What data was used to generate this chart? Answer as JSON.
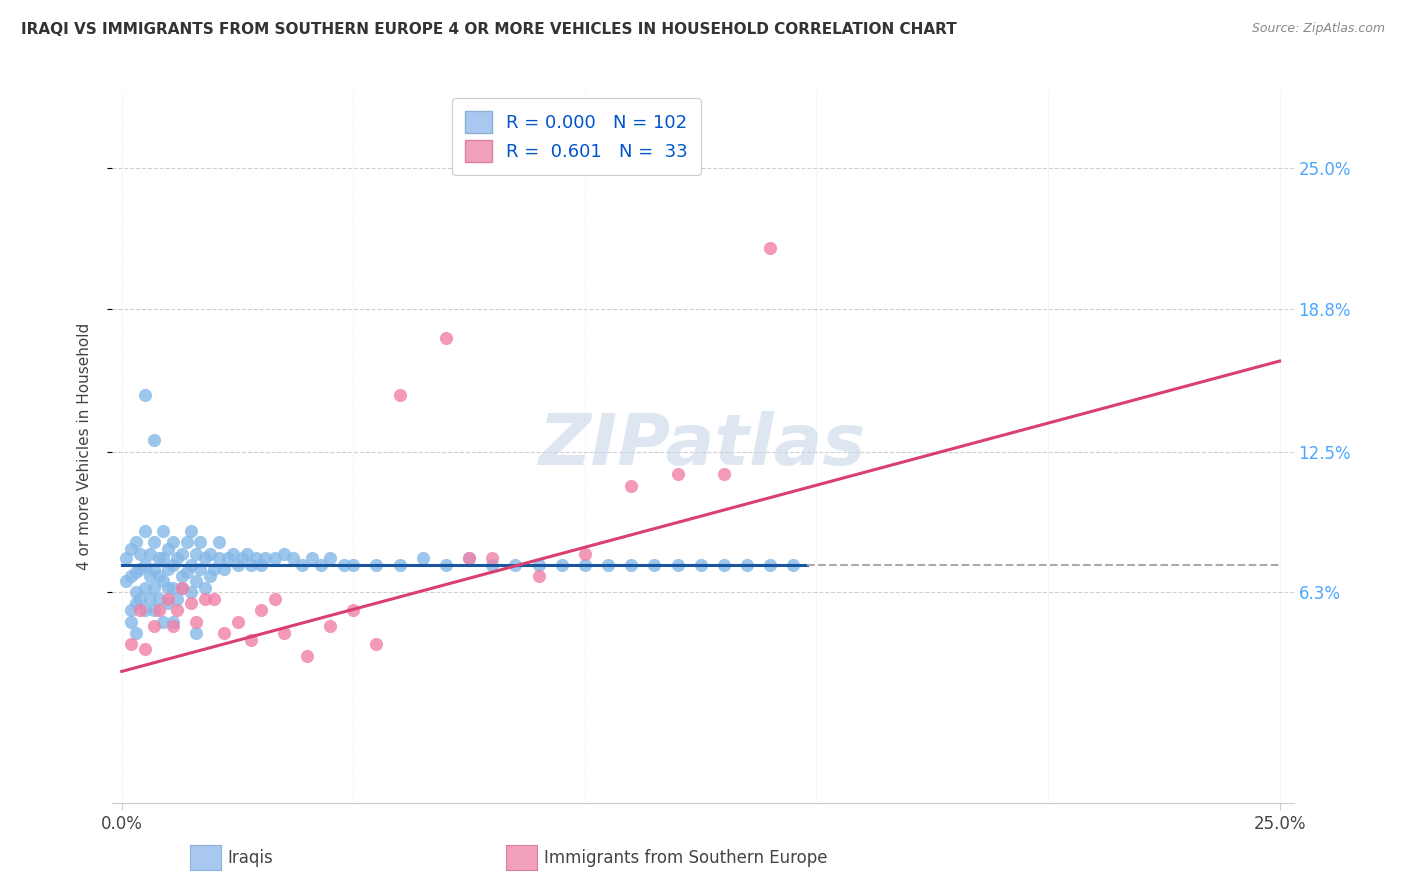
{
  "title": "IRAQI VS IMMIGRANTS FROM SOUTHERN EUROPE 4 OR MORE VEHICLES IN HOUSEHOLD CORRELATION CHART",
  "source": "Source: ZipAtlas.com",
  "ylabel": "4 or more Vehicles in Household",
  "ytick_vals": [
    0.063,
    0.125,
    0.188,
    0.25
  ],
  "ytick_labels": [
    "6.3%",
    "12.5%",
    "18.8%",
    "25.0%"
  ],
  "xlim": [
    0.0,
    0.25
  ],
  "ylim": [
    -0.03,
    0.285
  ],
  "iraqis_scatter_color": "#85b8e8",
  "southern_europe_scatter_color": "#f080a8",
  "iraqis_line_color": "#1a56a0",
  "southern_europe_line_color": "#d94070",
  "iraqis_line_y": 0.075,
  "iraqis_line_x_end": 0.148,
  "se_line_y_start": 0.028,
  "se_line_y_end": 0.165,
  "se_line_x_start": 0.0,
  "se_line_x_end": 0.25,
  "watermark_color": "#c8d8e8",
  "grid_color": "#d0d0d0",
  "title_color": "#333333",
  "source_color": "#888888",
  "right_label_color": "#4da6ff",
  "legend_box_color1": "#a8c8f0",
  "legend_box_color2": "#f0a0b8",
  "legend_text_color": "#0055cc",
  "bottom_legend_color": "#444444",
  "iraqis_x": [
    0.001,
    0.001,
    0.002,
    0.002,
    0.002,
    0.003,
    0.003,
    0.003,
    0.003,
    0.004,
    0.004,
    0.004,
    0.005,
    0.005,
    0.005,
    0.005,
    0.006,
    0.006,
    0.006,
    0.007,
    0.007,
    0.007,
    0.007,
    0.008,
    0.008,
    0.008,
    0.009,
    0.009,
    0.009,
    0.01,
    0.01,
    0.01,
    0.01,
    0.011,
    0.011,
    0.011,
    0.012,
    0.012,
    0.013,
    0.013,
    0.013,
    0.014,
    0.014,
    0.015,
    0.015,
    0.015,
    0.016,
    0.016,
    0.017,
    0.017,
    0.018,
    0.018,
    0.019,
    0.019,
    0.02,
    0.021,
    0.021,
    0.022,
    0.023,
    0.024,
    0.025,
    0.026,
    0.027,
    0.028,
    0.029,
    0.03,
    0.031,
    0.033,
    0.035,
    0.037,
    0.039,
    0.041,
    0.043,
    0.045,
    0.048,
    0.05,
    0.055,
    0.06,
    0.065,
    0.07,
    0.075,
    0.08,
    0.085,
    0.09,
    0.095,
    0.1,
    0.105,
    0.11,
    0.115,
    0.12,
    0.125,
    0.13,
    0.135,
    0.14,
    0.145,
    0.002,
    0.003,
    0.005,
    0.007,
    0.009,
    0.011,
    0.016
  ],
  "iraqis_y": [
    0.068,
    0.078,
    0.055,
    0.07,
    0.082,
    0.063,
    0.072,
    0.058,
    0.085,
    0.06,
    0.073,
    0.08,
    0.065,
    0.075,
    0.055,
    0.09,
    0.07,
    0.06,
    0.08,
    0.065,
    0.073,
    0.055,
    0.085,
    0.07,
    0.078,
    0.06,
    0.068,
    0.078,
    0.09,
    0.065,
    0.073,
    0.082,
    0.058,
    0.075,
    0.065,
    0.085,
    0.06,
    0.078,
    0.07,
    0.08,
    0.065,
    0.072,
    0.085,
    0.063,
    0.075,
    0.09,
    0.068,
    0.08,
    0.073,
    0.085,
    0.065,
    0.078,
    0.07,
    0.08,
    0.073,
    0.078,
    0.085,
    0.073,
    0.078,
    0.08,
    0.075,
    0.078,
    0.08,
    0.075,
    0.078,
    0.075,
    0.078,
    0.078,
    0.08,
    0.078,
    0.075,
    0.078,
    0.075,
    0.078,
    0.075,
    0.075,
    0.075,
    0.075,
    0.078,
    0.075,
    0.078,
    0.075,
    0.075,
    0.075,
    0.075,
    0.075,
    0.075,
    0.075,
    0.075,
    0.075,
    0.075,
    0.075,
    0.075,
    0.075,
    0.075,
    0.05,
    0.045,
    0.15,
    0.13,
    0.05,
    0.05,
    0.045
  ],
  "se_x": [
    0.002,
    0.004,
    0.005,
    0.007,
    0.008,
    0.01,
    0.011,
    0.012,
    0.013,
    0.015,
    0.016,
    0.018,
    0.02,
    0.022,
    0.025,
    0.028,
    0.03,
    0.033,
    0.035,
    0.04,
    0.045,
    0.05,
    0.055,
    0.06,
    0.07,
    0.075,
    0.08,
    0.09,
    0.1,
    0.11,
    0.12,
    0.13,
    0.14
  ],
  "se_y": [
    0.04,
    0.055,
    0.038,
    0.048,
    0.055,
    0.06,
    0.048,
    0.055,
    0.065,
    0.058,
    0.05,
    0.06,
    0.06,
    0.045,
    0.05,
    0.042,
    0.055,
    0.06,
    0.045,
    0.035,
    0.048,
    0.055,
    0.04,
    0.15,
    0.175,
    0.078,
    0.078,
    0.07,
    0.08,
    0.11,
    0.115,
    0.115,
    0.215
  ]
}
